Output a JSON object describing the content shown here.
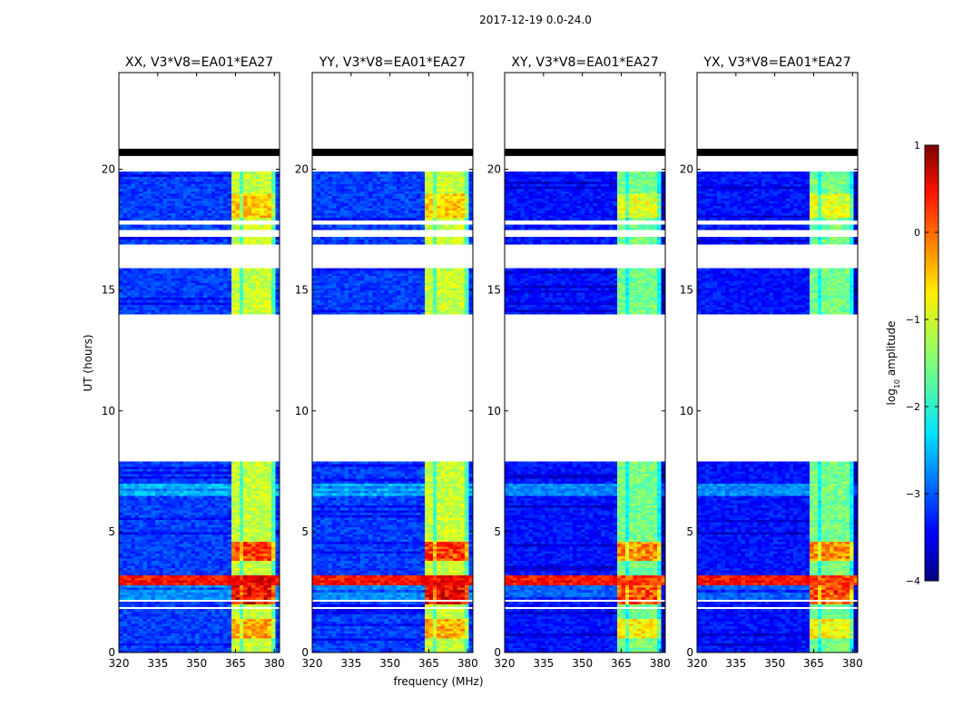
{
  "figure": {
    "suptitle": "2017-12-19 0.0-24.0"
  },
  "chart_data": {
    "type": "heatmap",
    "suptitle": "2017-12-19 0.0-24.0",
    "xlabel": "frequency (MHz)",
    "ylabel": "UT (hours)",
    "xlim": [
      320,
      382
    ],
    "ylim": [
      0,
      24
    ],
    "x_ticks": [
      "320",
      "335",
      "350",
      "365",
      "380"
    ],
    "y_ticks": [
      "0",
      "5",
      "10",
      "15",
      "20"
    ],
    "panels": [
      {
        "title": "XX, V3*V8=EA01*EA27",
        "pol": "XX"
      },
      {
        "title": "YY, V3*V8=EA01*EA27",
        "pol": "YY"
      },
      {
        "title": "XY, V3*V8=EA01*EA27",
        "pol": "XY"
      },
      {
        "title": "YX, V3*V8=EA01*EA27",
        "pol": "YX"
      }
    ],
    "colorbar": {
      "label": "log10 amplitude",
      "label_base": "log",
      "label_sub": "10",
      "label_rest": " amplitude",
      "colormap": "jet",
      "range": [
        -4,
        1
      ],
      "ticks": [
        "1",
        "0",
        "−1",
        "−2",
        "−3",
        "−4"
      ]
    },
    "data_segments_ut_hours": [
      [
        0.0,
        1.8
      ],
      [
        1.9,
        2.1
      ],
      [
        2.2,
        7.9
      ],
      [
        14.0,
        15.9
      ],
      [
        16.9,
        17.2
      ],
      [
        17.5,
        17.7
      ],
      [
        17.9,
        19.9
      ]
    ],
    "flagged_band_ut_hours": [
      20.55,
      20.85
    ],
    "rfi_band_mhz": [
      363.5,
      380.5
    ],
    "rfi_channels_mhz": [
      365.5,
      369.5,
      373.5,
      377.5
    ],
    "bright_band_ut_hours": [
      2.8,
      3.2
    ]
  }
}
